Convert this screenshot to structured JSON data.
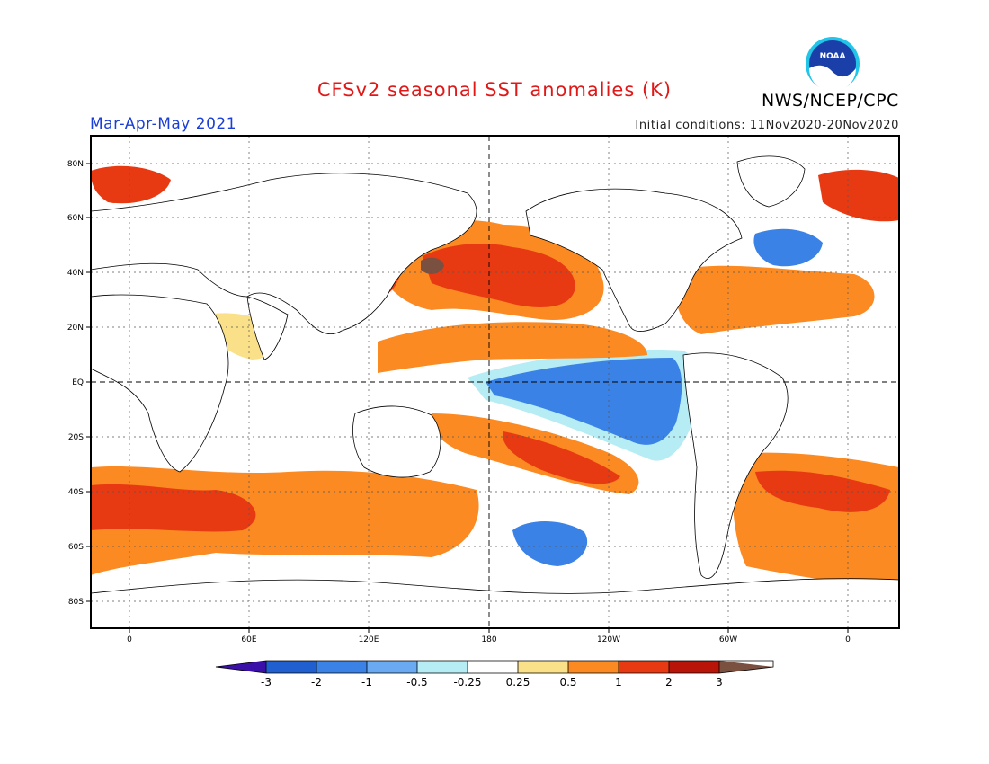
{
  "header": {
    "title": "CFSv2 seasonal SST anomalies (K)",
    "season": "Mar-Apr-May 2021",
    "initial_conditions": "Initial conditions: 11Nov2020-20Nov2020",
    "agency": "NWS/NCEP/CPC",
    "logo_text": "NOAA"
  },
  "map": {
    "lat_ticks": [
      "80N",
      "60N",
      "40N",
      "20N",
      "EQ",
      "20S",
      "40S",
      "60S",
      "80S"
    ],
    "lon_ticks": [
      "0",
      "60E",
      "120E",
      "180",
      "120W",
      "60W",
      "0"
    ]
  },
  "colorbar": {
    "labels": [
      "-3",
      "-2",
      "-1",
      "-0.5",
      "-0.25",
      "0.25",
      "0.5",
      "1",
      "2",
      "3"
    ],
    "colors": [
      "#3a10a8",
      "#1f5fd0",
      "#3a82e6",
      "#6aaaf2",
      "#b6ecf4",
      "#ffffff",
      "#fbe08a",
      "#fb8a22",
      "#e83a12",
      "#b81408",
      "#7a5040"
    ]
  }
}
